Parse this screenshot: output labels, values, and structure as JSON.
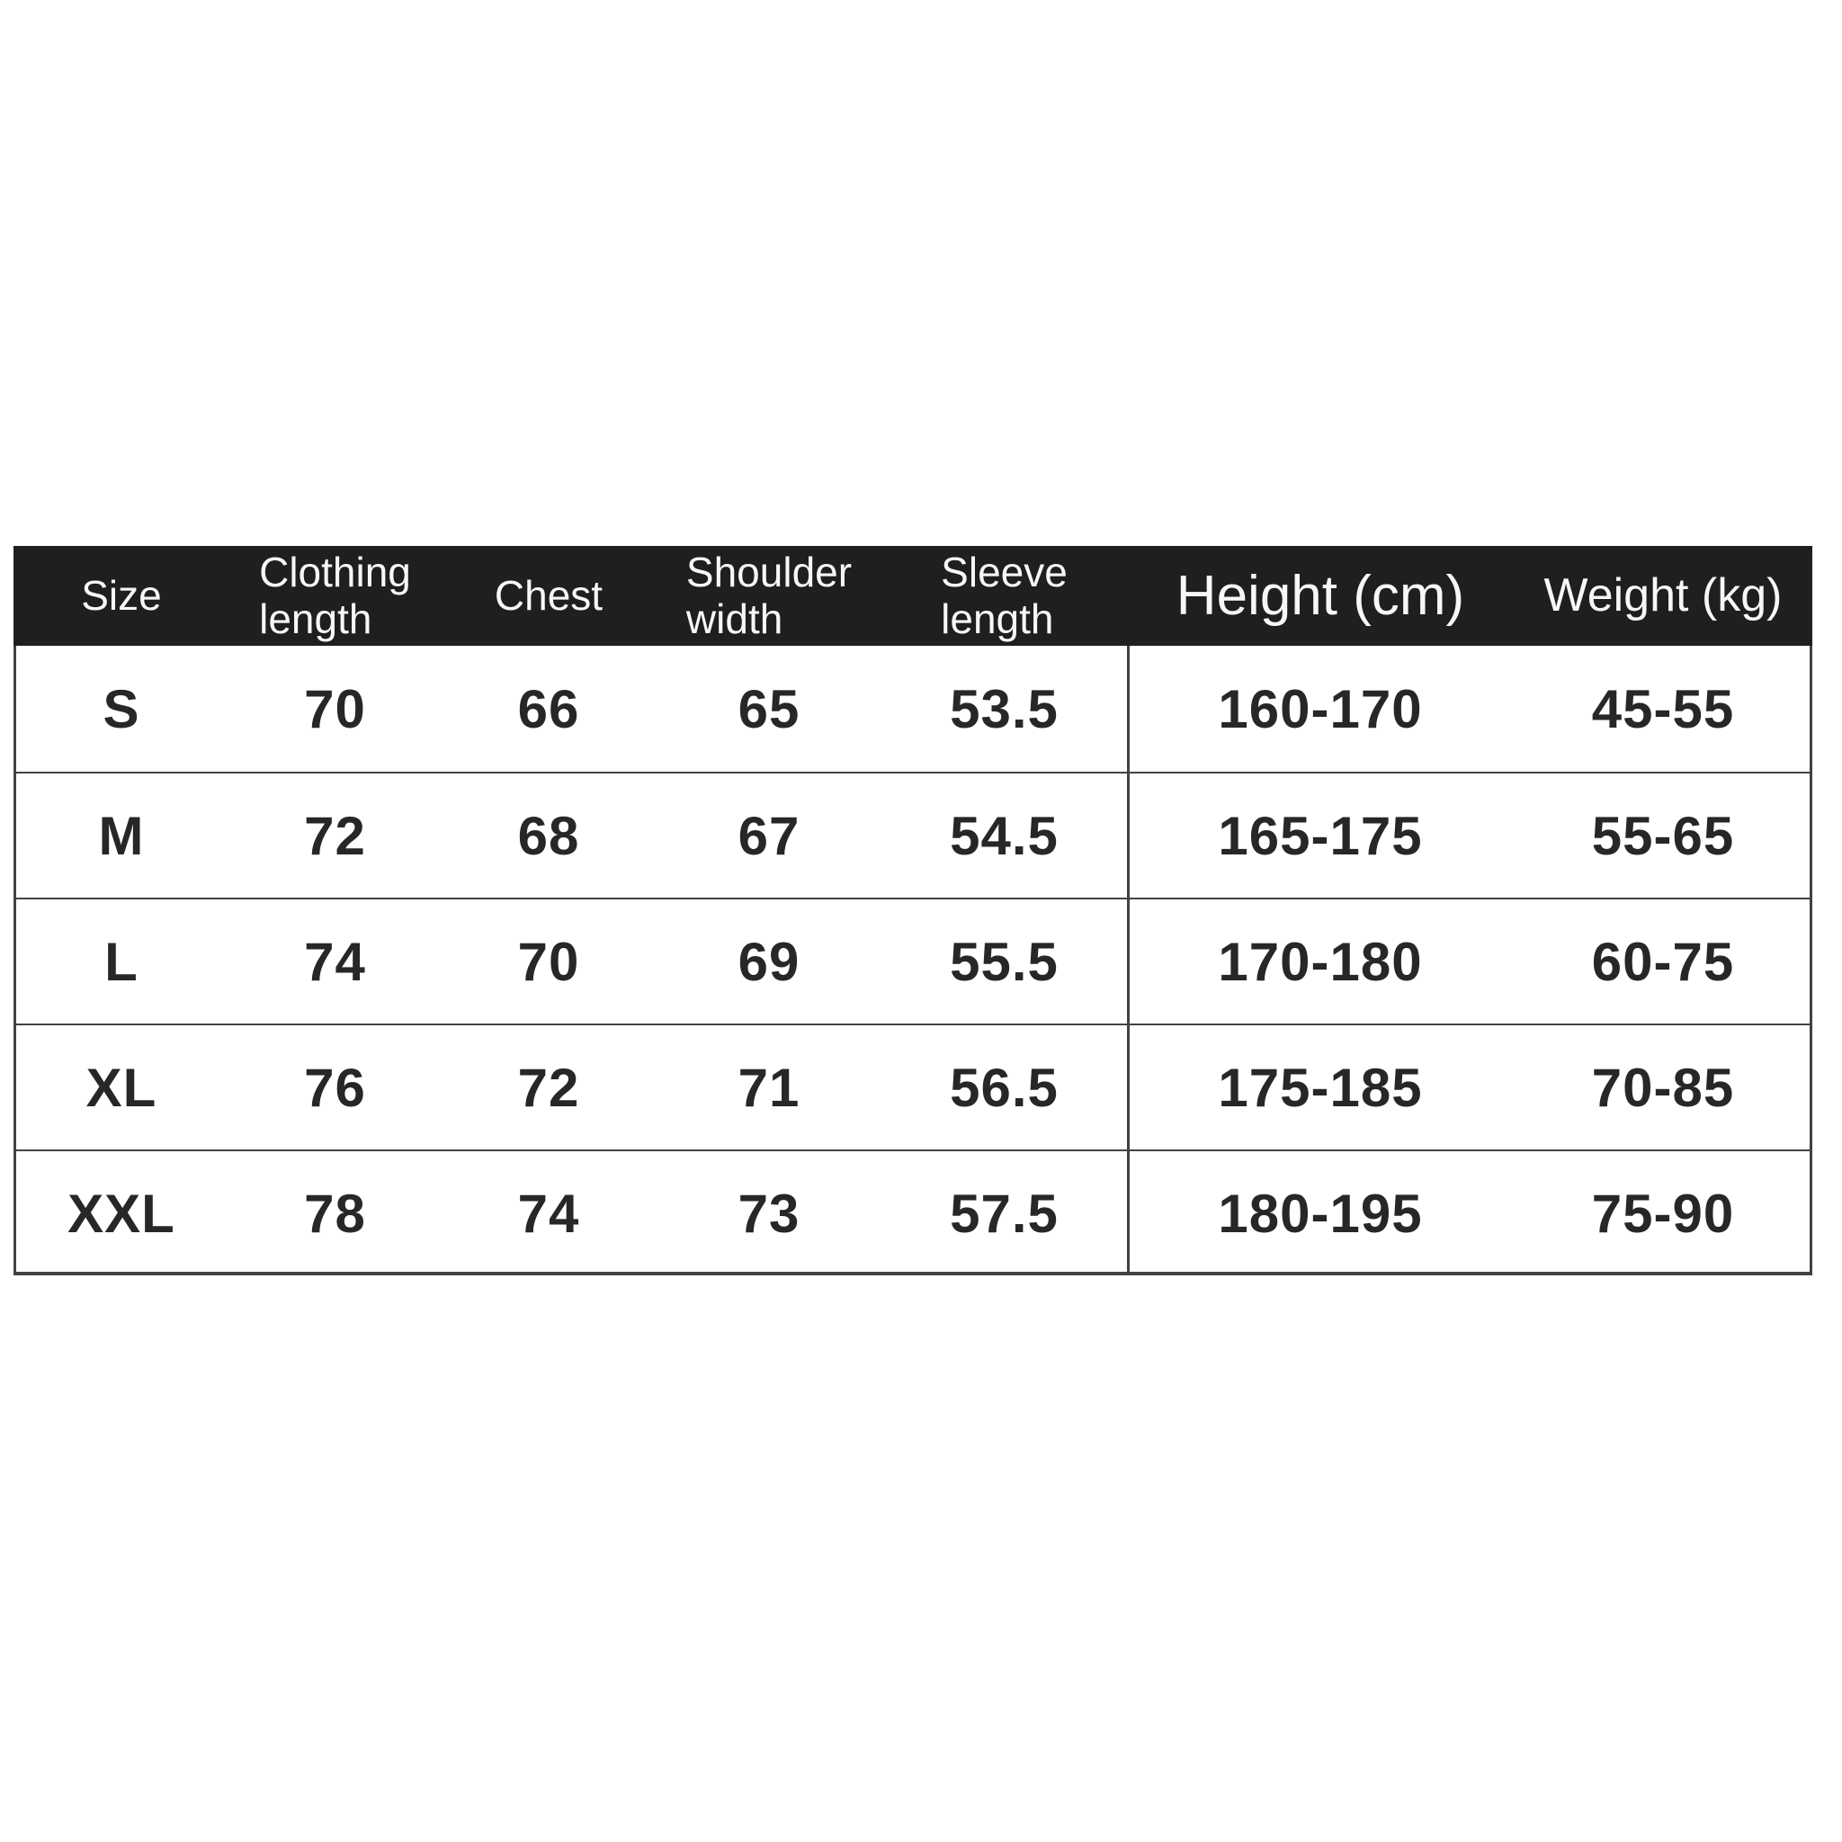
{
  "style_colors": {
    "page_bg": "#ffffff",
    "header_bg": "#1f1f1f",
    "header_text": "#f7f7f7",
    "body_text": "#272727",
    "border": "#424242"
  },
  "chart_data": {
    "type": "table",
    "columns": [
      "Size",
      "Clothing\nlength",
      "Chest",
      "Shoulder\nwidth",
      "Sleeve\nlength",
      "Height (cm)",
      "Weight (kg)"
    ],
    "rows": [
      [
        "S",
        "70",
        "66",
        "65",
        "53.5",
        "160-170",
        "45-55"
      ],
      [
        "M",
        "72",
        "68",
        "67",
        "54.5",
        "165-175",
        "55-65"
      ],
      [
        "L",
        "74",
        "70",
        "69",
        "55.5",
        "170-180",
        "60-75"
      ],
      [
        "XL",
        "76",
        "72",
        "71",
        "56.5",
        "175-185",
        "70-85"
      ],
      [
        "XXL",
        "78",
        "74",
        "73",
        "57.5",
        "180-195",
        "75-90"
      ]
    ],
    "layout": {
      "header_background": "#1f1f1f",
      "internal_vertical_divider_after_column": "Sleeve length",
      "grid": "horizontal row separators, outer left/right/bottom border"
    }
  }
}
